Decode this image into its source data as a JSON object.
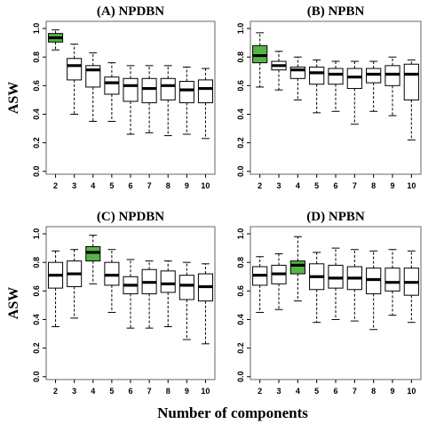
{
  "figure": {
    "xlabel": "Number of components"
  },
  "chart_data": [
    {
      "type": "boxplot",
      "title": "(A) NPDBN",
      "ylabel": "ASW",
      "xlabel": "",
      "ylim": [
        -0.02,
        1.05
      ],
      "yticks": [
        "0.0",
        "0.2",
        "0.4",
        "0.6",
        "0.8",
        "1.0"
      ],
      "categories": [
        "2",
        "3",
        "4",
        "5",
        "6",
        "7",
        "8",
        "9",
        "10"
      ],
      "highlight": "2",
      "boxes": [
        {
          "min": 0.85,
          "q1": 0.905,
          "median": 0.935,
          "q3": 0.965,
          "max": 0.99
        },
        {
          "min": 0.4,
          "q1": 0.64,
          "median": 0.74,
          "q3": 0.79,
          "max": 0.89
        },
        {
          "min": 0.35,
          "q1": 0.59,
          "median": 0.71,
          "q3": 0.74,
          "max": 0.83
        },
        {
          "min": 0.35,
          "q1": 0.54,
          "median": 0.62,
          "q3": 0.66,
          "max": 0.76
        },
        {
          "min": 0.26,
          "q1": 0.49,
          "median": 0.6,
          "q3": 0.65,
          "max": 0.74
        },
        {
          "min": 0.27,
          "q1": 0.48,
          "median": 0.58,
          "q3": 0.65,
          "max": 0.74
        },
        {
          "min": 0.25,
          "q1": 0.5,
          "median": 0.6,
          "q3": 0.65,
          "max": 0.74
        },
        {
          "min": 0.26,
          "q1": 0.48,
          "median": 0.57,
          "q3": 0.63,
          "max": 0.73
        },
        {
          "min": 0.23,
          "q1": 0.48,
          "median": 0.58,
          "q3": 0.64,
          "max": 0.72
        }
      ]
    },
    {
      "type": "boxplot",
      "title": "(B) NPBN",
      "ylabel": "",
      "xlabel": "",
      "ylim": [
        -0.02,
        1.05
      ],
      "yticks": [
        "0.0",
        "0.2",
        "0.4",
        "0.6",
        "0.8",
        "1.0"
      ],
      "categories": [
        "2",
        "3",
        "4",
        "5",
        "6",
        "7",
        "8",
        "9",
        "10"
      ],
      "highlight": "2",
      "boxes": [
        {
          "min": 0.59,
          "q1": 0.76,
          "median": 0.81,
          "q3": 0.88,
          "max": 0.97
        },
        {
          "min": 0.57,
          "q1": 0.71,
          "median": 0.74,
          "q3": 0.77,
          "max": 0.84
        },
        {
          "min": 0.5,
          "q1": 0.65,
          "median": 0.71,
          "q3": 0.73,
          "max": 0.8
        },
        {
          "min": 0.41,
          "q1": 0.61,
          "median": 0.69,
          "q3": 0.73,
          "max": 0.78
        },
        {
          "min": 0.42,
          "q1": 0.61,
          "median": 0.68,
          "q3": 0.72,
          "max": 0.77
        },
        {
          "min": 0.33,
          "q1": 0.58,
          "median": 0.66,
          "q3": 0.72,
          "max": 0.77
        },
        {
          "min": 0.42,
          "q1": 0.62,
          "median": 0.68,
          "q3": 0.72,
          "max": 0.77
        },
        {
          "min": 0.39,
          "q1": 0.6,
          "median": 0.68,
          "q3": 0.74,
          "max": 0.8
        },
        {
          "min": 0.22,
          "q1": 0.5,
          "median": 0.68,
          "q3": 0.75,
          "max": 0.78
        }
      ]
    },
    {
      "type": "boxplot",
      "title": "(C) NPDBN",
      "ylabel": "ASW",
      "xlabel": "",
      "ylim": [
        -0.02,
        1.05
      ],
      "yticks": [
        "0.0",
        "0.2",
        "0.4",
        "0.6",
        "0.8",
        "1.0"
      ],
      "categories": [
        "2",
        "3",
        "4",
        "5",
        "6",
        "7",
        "8",
        "9",
        "10"
      ],
      "highlight": "4",
      "boxes": [
        {
          "min": 0.35,
          "q1": 0.62,
          "median": 0.71,
          "q3": 0.8,
          "max": 0.88
        },
        {
          "min": 0.41,
          "q1": 0.63,
          "median": 0.72,
          "q3": 0.81,
          "max": 0.89
        },
        {
          "min": 0.65,
          "q1": 0.81,
          "median": 0.87,
          "q3": 0.91,
          "max": 0.99
        },
        {
          "min": 0.45,
          "q1": 0.64,
          "median": 0.71,
          "q3": 0.8,
          "max": 0.89
        },
        {
          "min": 0.34,
          "q1": 0.58,
          "median": 0.64,
          "q3": 0.7,
          "max": 0.82
        },
        {
          "min": 0.34,
          "q1": 0.58,
          "median": 0.66,
          "q3": 0.75,
          "max": 0.81
        },
        {
          "min": 0.35,
          "q1": 0.59,
          "median": 0.65,
          "q3": 0.74,
          "max": 0.81
        },
        {
          "min": 0.26,
          "q1": 0.54,
          "median": 0.64,
          "q3": 0.71,
          "max": 0.8
        },
        {
          "min": 0.23,
          "q1": 0.53,
          "median": 0.63,
          "q3": 0.72,
          "max": 0.79
        }
      ]
    },
    {
      "type": "boxplot",
      "title": "(D) NPBN",
      "ylabel": "",
      "xlabel": "",
      "ylim": [
        -0.02,
        1.05
      ],
      "yticks": [
        "0.0",
        "0.2",
        "0.4",
        "0.6",
        "0.8",
        "1.0"
      ],
      "categories": [
        "2",
        "3",
        "4",
        "5",
        "6",
        "7",
        "8",
        "9",
        "10"
      ],
      "highlight": "4",
      "boxes": [
        {
          "min": 0.45,
          "q1": 0.64,
          "median": 0.71,
          "q3": 0.77,
          "max": 0.84
        },
        {
          "min": 0.47,
          "q1": 0.65,
          "median": 0.72,
          "q3": 0.78,
          "max": 0.86
        },
        {
          "min": 0.53,
          "q1": 0.72,
          "median": 0.78,
          "q3": 0.81,
          "max": 0.98
        },
        {
          "min": 0.38,
          "q1": 0.61,
          "median": 0.7,
          "q3": 0.79,
          "max": 0.87
        },
        {
          "min": 0.4,
          "q1": 0.62,
          "median": 0.69,
          "q3": 0.78,
          "max": 0.9
        },
        {
          "min": 0.39,
          "q1": 0.61,
          "median": 0.69,
          "q3": 0.77,
          "max": 0.89
        },
        {
          "min": 0.33,
          "q1": 0.58,
          "median": 0.68,
          "q3": 0.76,
          "max": 0.88
        },
        {
          "min": 0.43,
          "q1": 0.6,
          "median": 0.66,
          "q3": 0.76,
          "max": 0.89
        },
        {
          "min": 0.38,
          "q1": 0.57,
          "median": 0.66,
          "q3": 0.76,
          "max": 0.88
        }
      ]
    }
  ],
  "colors": {
    "highlight_fill": "#56b447",
    "box_fill": "#ffffff",
    "stroke": "#000000",
    "frame": "#666666"
  }
}
